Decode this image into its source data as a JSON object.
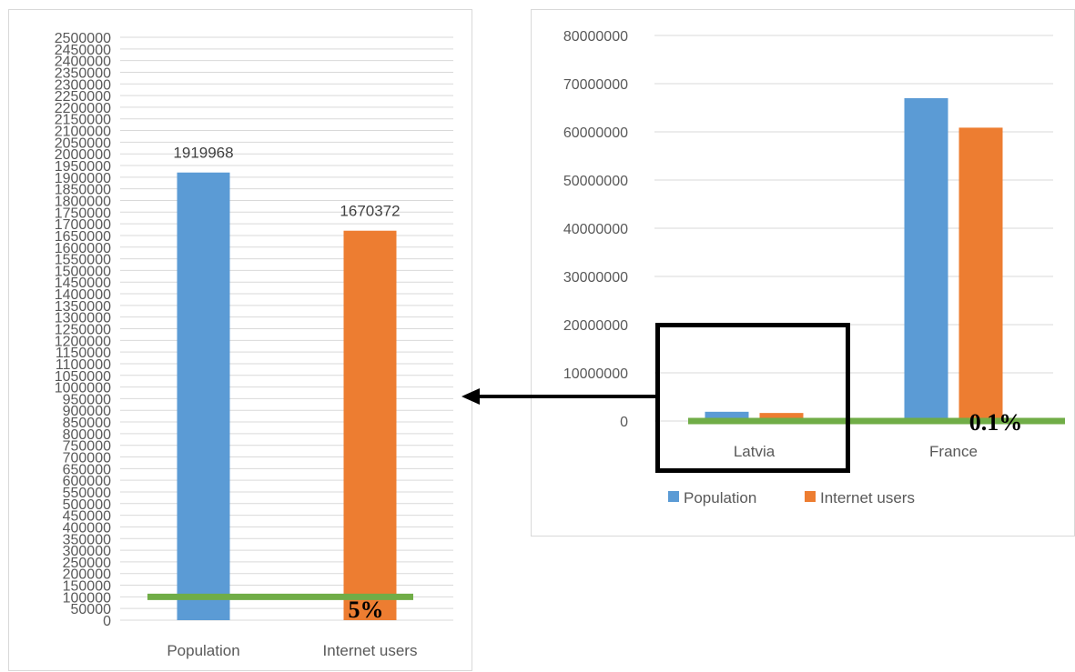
{
  "chart_data": [
    {
      "type": "bar",
      "categories": [
        "Population",
        "Internet users"
      ],
      "values": [
        1919968,
        1670372
      ],
      "data_labels": [
        "1919968",
        "1670372"
      ],
      "bar_colors": [
        "#5b9bd5",
        "#ed7d31"
      ],
      "ylim": [
        0,
        2500000
      ],
      "ytick_step": 50000,
      "grid": true,
      "threshold_line": {
        "value": 100000,
        "color": "#70ad47"
      },
      "annotation": "5%"
    },
    {
      "type": "bar",
      "categories": [
        "Latvia",
        "France"
      ],
      "series": [
        {
          "name": "Population",
          "values": [
            1919968,
            66990000
          ],
          "color": "#5b9bd5"
        },
        {
          "name": "Internet users",
          "values": [
            1670372,
            60870000
          ],
          "color": "#ed7d31"
        }
      ],
      "ylim": [
        0,
        80000000
      ],
      "ytick_step": 10000000,
      "grid": true,
      "legend": "bottom",
      "threshold_line": {
        "value": 0,
        "color": "#70ad47"
      },
      "annotation": "0.1%"
    }
  ]
}
